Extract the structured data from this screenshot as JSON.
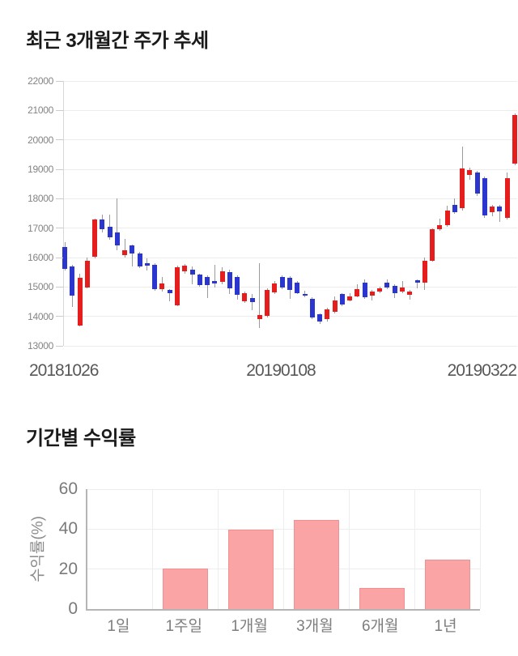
{
  "page_background": "#ffffff",
  "chart_data": [
    {
      "type": "candlestick",
      "title": "최근 3개월간 주가 추세",
      "ylim": [
        13000,
        22000
      ],
      "y_ticks": [
        22000,
        21000,
        20000,
        19000,
        18000,
        17000,
        16000,
        15000,
        14000,
        13000
      ],
      "x_tick_labels": [
        "20181026",
        "20190108",
        "20190322"
      ],
      "grid": true,
      "legend": "none",
      "colors": {
        "bullish": "#e51d1d",
        "bearish": "#2b36cf",
        "wick": "#9a9a9a"
      },
      "candle_format": [
        "open",
        "high",
        "low",
        "close"
      ],
      "candles": [
        [
          16350,
          16530,
          15570,
          15620
        ],
        [
          15700,
          15750,
          14330,
          14700
        ],
        [
          13690,
          15440,
          13660,
          15300
        ],
        [
          14980,
          15990,
          14950,
          15900
        ],
        [
          16030,
          17330,
          15980,
          17300
        ],
        [
          17290,
          17460,
          16840,
          16950
        ],
        [
          17045,
          17470,
          16600,
          16680
        ],
        [
          16850,
          18000,
          16250,
          16400
        ],
        [
          16080,
          16630,
          16000,
          16260
        ],
        [
          16400,
          16450,
          15700,
          16130
        ],
        [
          16130,
          16180,
          15650,
          15710
        ],
        [
          15800,
          15980,
          15560,
          15720
        ],
        [
          15760,
          15800,
          14870,
          14930
        ],
        [
          14935,
          15330,
          14850,
          15120
        ],
        [
          14890,
          14940,
          14520,
          14795
        ],
        [
          14385,
          15720,
          14340,
          15670
        ],
        [
          15530,
          15790,
          15450,
          15715
        ],
        [
          15600,
          15700,
          15100,
          15420
        ],
        [
          15420,
          15450,
          15000,
          15060
        ],
        [
          15350,
          15400,
          14620,
          15060
        ],
        [
          15210,
          15760,
          14990,
          15120
        ],
        [
          15165,
          15670,
          15100,
          15530
        ],
        [
          15515,
          15580,
          14750,
          14965
        ],
        [
          15350,
          15390,
          14570,
          14720
        ],
        [
          14520,
          14850,
          14450,
          14800
        ],
        [
          14615,
          14750,
          14200,
          14475
        ],
        [
          13900,
          15800,
          13600,
          14050
        ],
        [
          14020,
          14950,
          13960,
          14890
        ],
        [
          14810,
          15190,
          14760,
          15120
        ],
        [
          15350,
          15400,
          14940,
          14990
        ],
        [
          15310,
          15360,
          14600,
          14890
        ],
        [
          15150,
          15200,
          14750,
          14800
        ],
        [
          14760,
          14860,
          14640,
          14740
        ],
        [
          14600,
          14650,
          13900,
          13950
        ],
        [
          14060,
          14100,
          13750,
          13820
        ],
        [
          13900,
          14300,
          13820,
          14250
        ],
        [
          14160,
          14670,
          14100,
          14550
        ],
        [
          14760,
          14800,
          14340,
          14390
        ],
        [
          14550,
          14780,
          14500,
          14690
        ],
        [
          14690,
          15100,
          14650,
          14940
        ],
        [
          15160,
          15260,
          14600,
          14650
        ],
        [
          14700,
          14900,
          14550,
          14850
        ],
        [
          14840,
          15000,
          14800,
          14950
        ],
        [
          15160,
          15260,
          14930,
          14980
        ],
        [
          15050,
          15100,
          14610,
          14800
        ],
        [
          14840,
          15200,
          14800,
          14970
        ],
        [
          14740,
          14900,
          14570,
          14840
        ],
        [
          15220,
          15260,
          14950,
          15150
        ],
        [
          15160,
          16000,
          14900,
          15900
        ],
        [
          15900,
          17000,
          15850,
          16950
        ],
        [
          16950,
          17330,
          16900,
          17100
        ],
        [
          17090,
          17750,
          17050,
          17600
        ],
        [
          17780,
          18010,
          17480,
          17550
        ],
        [
          17690,
          19760,
          17600,
          19020
        ],
        [
          18800,
          19050,
          18650,
          18960
        ],
        [
          18880,
          18950,
          18100,
          18170
        ],
        [
          18700,
          18750,
          17350,
          17430
        ],
        [
          17550,
          17780,
          17400,
          17730
        ],
        [
          17730,
          17800,
          17200,
          17560
        ],
        [
          17350,
          18900,
          17300,
          18700
        ],
        [
          19200,
          20900,
          19150,
          20850
        ]
      ]
    },
    {
      "type": "bar",
      "title": "기간별 수익률",
      "ylabel": "수익률(%)",
      "categories": [
        "1일",
        "1주일",
        "1개월",
        "3개월",
        "6개월",
        "1년"
      ],
      "values": [
        0,
        19.7,
        39.5,
        44,
        10,
        24.3
      ],
      "ylim": [
        0,
        60
      ],
      "y_ticks": [
        0,
        20,
        40,
        60
      ],
      "grid": true,
      "legend": "none",
      "bar_color": "#fba4a5",
      "bar_border_color": "#f19093"
    }
  ]
}
